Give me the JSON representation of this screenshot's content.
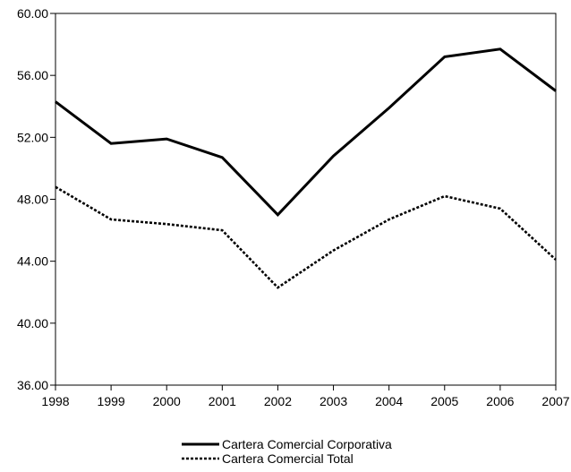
{
  "chart_data": {
    "type": "line",
    "title": "",
    "xlabel": "",
    "ylabel": "",
    "x": [
      "1998",
      "1999",
      "2000",
      "2001",
      "2002",
      "2003",
      "2004",
      "2005",
      "2006",
      "2007"
    ],
    "y_ticks": [
      "36.00",
      "40.00",
      "44.00",
      "48.00",
      "52.00",
      "56.00",
      "60.00"
    ],
    "ylim": [
      36,
      60
    ],
    "grid": false,
    "legend_position": "bottom-center",
    "series": [
      {
        "name": "Cartera Comercial Corporativa",
        "style": "solid",
        "color": "#000000",
        "values": [
          54.3,
          51.6,
          51.9,
          50.7,
          47.0,
          50.8,
          53.9,
          57.2,
          57.7,
          55.0
        ]
      },
      {
        "name": "Cartera Comercial Total",
        "style": "dotted",
        "color": "#000000",
        "values": [
          48.8,
          46.7,
          46.4,
          46.0,
          42.3,
          44.7,
          46.7,
          48.2,
          47.4,
          44.1
        ]
      }
    ]
  }
}
